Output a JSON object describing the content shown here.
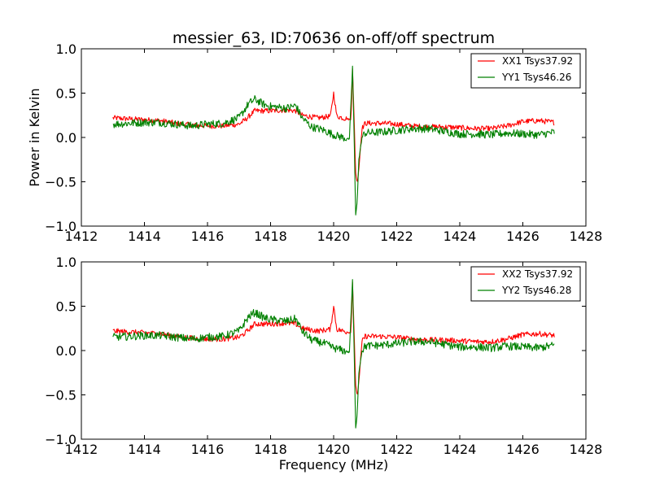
{
  "figure": {
    "title": "messier_63, ID:70636 on-off/off spectrum",
    "xlabel": "Frequency (MHz)"
  },
  "colors": {
    "xx": "#ff0000",
    "yy": "#008000"
  },
  "chart_data": [
    {
      "type": "line",
      "title": "",
      "xlabel": "",
      "ylabel": "Power in Kelvin",
      "xlim": [
        1412,
        1428
      ],
      "ylim": [
        -1.0,
        1.0
      ],
      "xticks": [
        1412,
        1414,
        1416,
        1418,
        1420,
        1422,
        1424,
        1426,
        1428
      ],
      "xtick_labels": [
        "1412",
        "1414",
        "1416",
        "1418",
        "1420",
        "1422",
        "1424",
        "1426",
        "1428"
      ],
      "yticks": [
        -1.0,
        -0.5,
        0.0,
        0.5,
        1.0
      ],
      "ytick_labels": [
        "−1.0",
        "−0.5",
        "0.0",
        "0.5",
        "1.0"
      ],
      "grid": false,
      "legend": "top-right",
      "series": [
        {
          "name": "XX1 Tsys37.92",
          "color": "#ff0000",
          "x": [
            1413.0,
            1413.5,
            1414.0,
            1414.5,
            1415.0,
            1415.5,
            1416.0,
            1416.5,
            1417.0,
            1417.2,
            1417.5,
            1418.0,
            1418.5,
            1418.8,
            1419.0,
            1419.5,
            1419.9,
            1420.0,
            1420.1,
            1420.3,
            1420.55,
            1420.6,
            1420.65,
            1420.7,
            1420.75,
            1420.8,
            1420.9,
            1421.0,
            1421.5,
            1422.0,
            1422.5,
            1423.0,
            1423.5,
            1424.0,
            1424.5,
            1425.0,
            1425.5,
            1426.0,
            1426.5,
            1427.0
          ],
          "y": [
            0.22,
            0.21,
            0.2,
            0.19,
            0.16,
            0.14,
            0.13,
            0.13,
            0.15,
            0.2,
            0.3,
            0.3,
            0.31,
            0.3,
            0.25,
            0.22,
            0.24,
            0.5,
            0.24,
            0.22,
            0.2,
            0.78,
            0.2,
            -0.4,
            -0.52,
            -0.35,
            0.1,
            0.16,
            0.16,
            0.15,
            0.13,
            0.12,
            0.12,
            0.11,
            0.1,
            0.1,
            0.13,
            0.18,
            0.19,
            0.17
          ]
        },
        {
          "name": "YY1 Tsys46.26",
          "color": "#008000",
          "x": [
            1413.0,
            1413.5,
            1414.0,
            1414.5,
            1415.0,
            1415.5,
            1416.0,
            1416.5,
            1417.0,
            1417.3,
            1417.5,
            1417.8,
            1418.0,
            1418.5,
            1418.8,
            1419.0,
            1419.3,
            1419.7,
            1420.0,
            1420.3,
            1420.5,
            1420.6,
            1420.65,
            1420.7,
            1420.75,
            1420.8,
            1420.9,
            1421.0,
            1421.5,
            1422.0,
            1422.5,
            1423.0,
            1423.5,
            1424.0,
            1424.5,
            1425.0,
            1425.5,
            1426.0,
            1426.5,
            1427.0
          ],
          "y": [
            0.15,
            0.16,
            0.17,
            0.17,
            0.15,
            0.13,
            0.15,
            0.16,
            0.22,
            0.38,
            0.43,
            0.37,
            0.35,
            0.33,
            0.36,
            0.22,
            0.12,
            0.08,
            0.03,
            0.0,
            -0.02,
            0.8,
            0.0,
            -0.88,
            -0.7,
            -0.25,
            0.0,
            0.05,
            0.06,
            0.08,
            0.1,
            0.1,
            0.07,
            0.04,
            0.04,
            0.03,
            0.05,
            0.04,
            0.03,
            0.06
          ]
        }
      ]
    },
    {
      "type": "line",
      "title": "",
      "xlabel": "Frequency (MHz)",
      "ylabel": "",
      "xlim": [
        1412,
        1428
      ],
      "ylim": [
        -1.0,
        1.0
      ],
      "xticks": [
        1412,
        1414,
        1416,
        1418,
        1420,
        1422,
        1424,
        1426,
        1428
      ],
      "xtick_labels": [
        "1412",
        "1414",
        "1416",
        "1418",
        "1420",
        "1422",
        "1424",
        "1426",
        "1428"
      ],
      "yticks": [
        -1.0,
        -0.5,
        0.0,
        0.5,
        1.0
      ],
      "ytick_labels": [
        "−1.0",
        "−0.5",
        "0.0",
        "0.5",
        "1.0"
      ],
      "grid": false,
      "legend": "top-right",
      "series": [
        {
          "name": "XX2 Tsys37.92",
          "color": "#ff0000",
          "x": [
            1413.0,
            1413.5,
            1414.0,
            1414.5,
            1415.0,
            1415.5,
            1416.0,
            1416.5,
            1417.0,
            1417.2,
            1417.5,
            1418.0,
            1418.5,
            1418.8,
            1419.0,
            1419.5,
            1419.9,
            1420.0,
            1420.1,
            1420.3,
            1420.55,
            1420.6,
            1420.65,
            1420.7,
            1420.75,
            1420.8,
            1420.9,
            1421.0,
            1421.5,
            1422.0,
            1422.5,
            1423.0,
            1423.5,
            1424.0,
            1424.5,
            1425.0,
            1425.5,
            1426.0,
            1426.5,
            1427.0
          ],
          "y": [
            0.22,
            0.21,
            0.2,
            0.19,
            0.16,
            0.14,
            0.13,
            0.13,
            0.15,
            0.2,
            0.3,
            0.3,
            0.31,
            0.3,
            0.25,
            0.22,
            0.24,
            0.5,
            0.24,
            0.22,
            0.2,
            0.78,
            0.2,
            -0.4,
            -0.52,
            -0.35,
            0.1,
            0.16,
            0.16,
            0.15,
            0.13,
            0.12,
            0.12,
            0.11,
            0.1,
            0.1,
            0.13,
            0.18,
            0.19,
            0.17
          ]
        },
        {
          "name": "YY2 Tsys46.28",
          "color": "#008000",
          "x": [
            1413.0,
            1413.5,
            1414.0,
            1414.5,
            1415.0,
            1415.5,
            1416.0,
            1416.5,
            1417.0,
            1417.3,
            1417.5,
            1417.8,
            1418.0,
            1418.5,
            1418.8,
            1419.0,
            1419.3,
            1419.7,
            1420.0,
            1420.3,
            1420.5,
            1420.6,
            1420.65,
            1420.7,
            1420.75,
            1420.8,
            1420.9,
            1421.0,
            1421.5,
            1422.0,
            1422.5,
            1423.0,
            1423.5,
            1424.0,
            1424.5,
            1425.0,
            1425.5,
            1426.0,
            1426.5,
            1427.0
          ],
          "y": [
            0.15,
            0.16,
            0.17,
            0.17,
            0.15,
            0.13,
            0.15,
            0.16,
            0.22,
            0.38,
            0.43,
            0.37,
            0.35,
            0.33,
            0.36,
            0.22,
            0.12,
            0.08,
            0.03,
            0.0,
            -0.02,
            0.8,
            0.0,
            -0.88,
            -0.7,
            -0.25,
            0.0,
            0.05,
            0.06,
            0.08,
            0.1,
            0.1,
            0.07,
            0.04,
            0.04,
            0.03,
            0.05,
            0.04,
            0.03,
            0.06
          ]
        }
      ]
    }
  ]
}
